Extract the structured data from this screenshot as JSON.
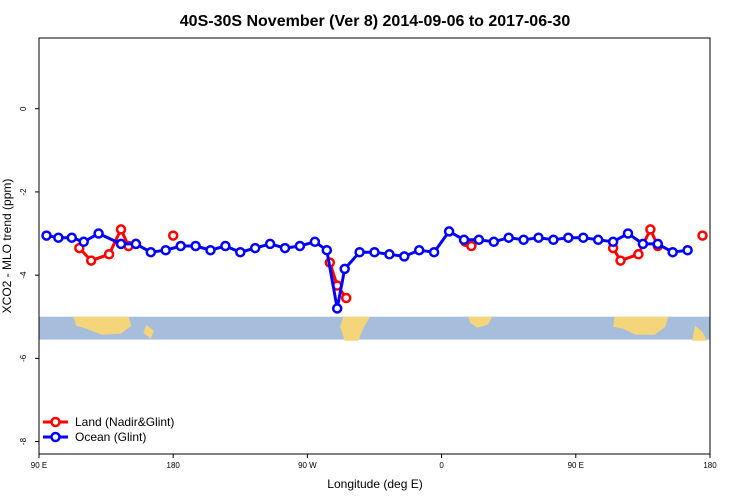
{
  "chart_data": {
    "type": "line",
    "title": "40S-30S November (Ver 8)   2014-09-06 to 2017-06-30",
    "xlabel": "Longitude (deg E)",
    "ylabel": "XCO2 - MLO trend (ppm)",
    "x_range_deg": [
      90,
      450
    ],
    "ylim": [
      -8.3,
      1.7
    ],
    "x_ticks": [
      {
        "value": 90,
        "label": "90 E"
      },
      {
        "value": 180,
        "label": "180"
      },
      {
        "value": 270,
        "label": "90 W"
      },
      {
        "value": 360,
        "label": "0"
      },
      {
        "value": 450,
        "label": "90 E"
      },
      {
        "value": 540,
        "label": "180"
      }
    ],
    "y_ticks": [
      {
        "value": 0,
        "label": "0"
      },
      {
        "value": -2,
        "label": "-2"
      },
      {
        "value": -4,
        "label": "-4"
      },
      {
        "value": -6,
        "label": "-6"
      },
      {
        "value": -8,
        "label": "-8"
      }
    ],
    "grid": false,
    "legend_position": "bottom-left",
    "map_strip": {
      "y_top": -5.0,
      "y_bottom": -5.55,
      "ocean_color": "#a6bddb",
      "land_color": "#f5d57a"
    },
    "series": [
      {
        "name": "Land (Nadir&Glint)",
        "color": "#ff0000",
        "segments": [
          [
            [
              117,
              -3.35
            ],
            [
              125,
              -3.65
            ],
            [
              137,
              -3.5
            ],
            [
              145,
              -2.9
            ],
            [
              150,
              -3.3
            ],
            [
              155,
              -3.25
            ]
          ],
          [
            [
              180,
              -3.05
            ]
          ],
          [
            [
              285,
              -3.7
            ],
            [
              290,
              -4.25
            ],
            [
              296,
              -4.55
            ]
          ],
          [
            [
              376,
              -3.2
            ],
            [
              380,
              -3.3
            ]
          ],
          [
            [
              475,
              -3.35
            ],
            [
              480,
              -3.65
            ],
            [
              492,
              -3.5
            ],
            [
              500,
              -2.9
            ],
            [
              505,
              -3.3
            ]
          ],
          [
            [
              535,
              -3.05
            ]
          ]
        ]
      },
      {
        "name": "Ocean (Glint)",
        "color": "#0000ff",
        "segments": [
          [
            [
              95,
              -3.05
            ],
            [
              103,
              -3.1
            ],
            [
              112,
              -3.1
            ],
            [
              120,
              -3.2
            ],
            [
              130,
              -3.0
            ],
            [
              145,
              -3.25
            ],
            [
              155,
              -3.25
            ],
            [
              165,
              -3.45
            ],
            [
              175,
              -3.4
            ],
            [
              185,
              -3.3
            ],
            [
              195,
              -3.3
            ],
            [
              205,
              -3.4
            ],
            [
              215,
              -3.3
            ],
            [
              225,
              -3.45
            ],
            [
              235,
              -3.35
            ],
            [
              245,
              -3.25
            ],
            [
              255,
              -3.35
            ],
            [
              265,
              -3.3
            ],
            [
              275,
              -3.2
            ],
            [
              283,
              -3.4
            ],
            [
              290,
              -4.8
            ],
            [
              295,
              -3.85
            ],
            [
              305,
              -3.45
            ],
            [
              315,
              -3.45
            ],
            [
              325,
              -3.5
            ],
            [
              335,
              -3.55
            ],
            [
              345,
              -3.4
            ],
            [
              355,
              -3.45
            ],
            [
              365,
              -2.95
            ],
            [
              375,
              -3.15
            ],
            [
              385,
              -3.15
            ],
            [
              395,
              -3.2
            ],
            [
              405,
              -3.1
            ],
            [
              415,
              -3.15
            ],
            [
              425,
              -3.1
            ],
            [
              435,
              -3.15
            ],
            [
              445,
              -3.1
            ],
            [
              455,
              -3.1
            ],
            [
              465,
              -3.15
            ],
            [
              475,
              -3.2
            ],
            [
              485,
              -3.0
            ],
            [
              495,
              -3.25
            ],
            [
              505,
              -3.25
            ],
            [
              515,
              -3.45
            ],
            [
              525,
              -3.4
            ]
          ]
        ]
      }
    ]
  }
}
